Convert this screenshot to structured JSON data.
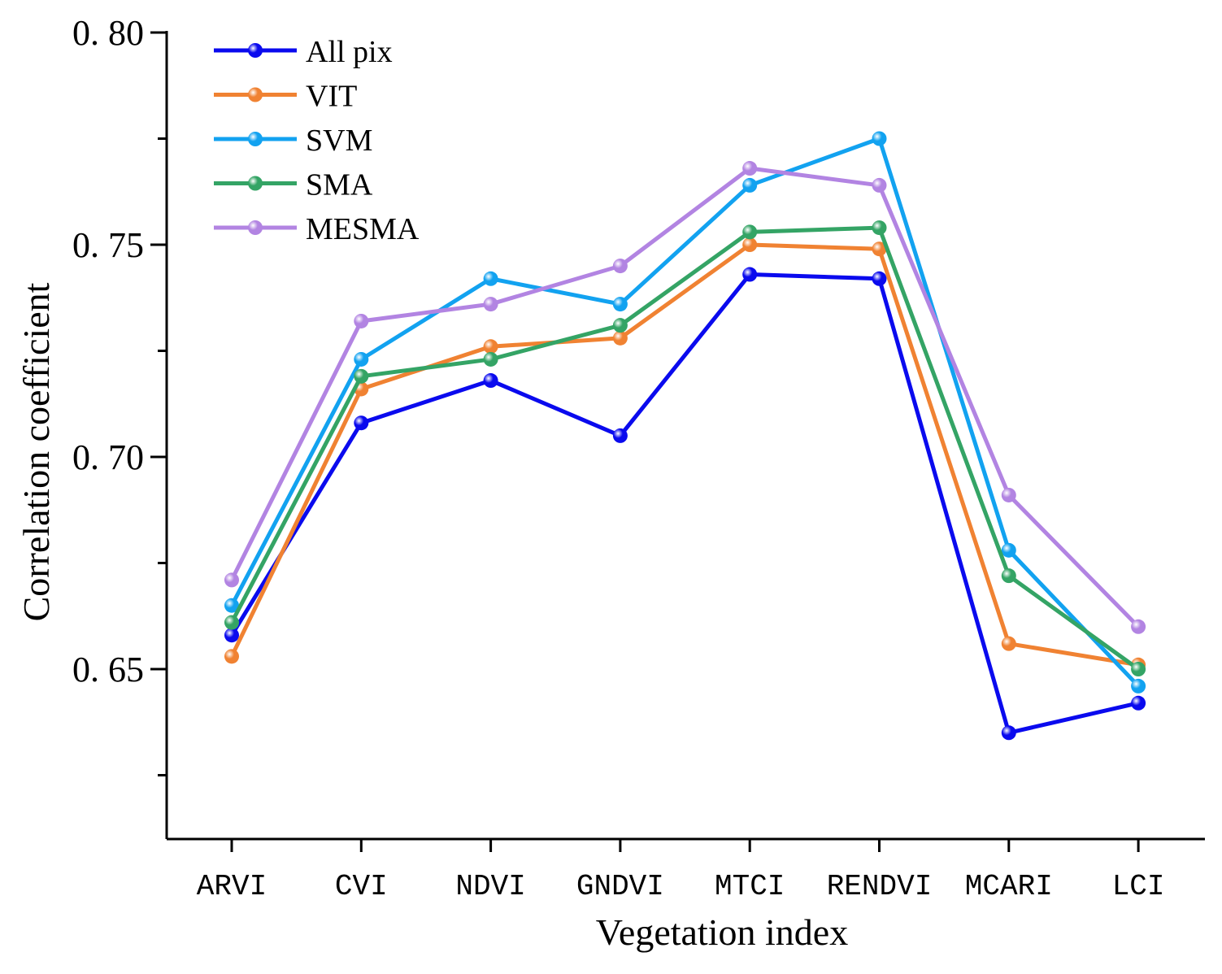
{
  "chart_data": {
    "type": "line",
    "title": "",
    "xlabel": "Vegetation index",
    "ylabel": "Correlation coefficient",
    "categories": [
      "ARVI",
      "CVI",
      "NDVI",
      "GNDVI",
      "MTCI",
      "RENDVI",
      "MCARI",
      "LCI"
    ],
    "ylim": [
      0.61,
      0.8
    ],
    "yticks": [
      0.65,
      0.7,
      0.75,
      0.8
    ],
    "ytick_labels": [
      "0. 65",
      "0. 70",
      "0. 75",
      "0. 80"
    ],
    "yminor_ticks": [
      0.625,
      0.675,
      0.725,
      0.775
    ],
    "grid": false,
    "legend_position": "top-left",
    "series": [
      {
        "name": "All pix",
        "color": "#0a0aee",
        "values": [
          0.658,
          0.708,
          0.718,
          0.705,
          0.743,
          0.742,
          0.635,
          0.642
        ]
      },
      {
        "name": "VIT",
        "color": "#f08232",
        "values": [
          0.653,
          0.716,
          0.726,
          0.728,
          0.75,
          0.749,
          0.656,
          0.651
        ]
      },
      {
        "name": "SVM",
        "color": "#12a2f0",
        "values": [
          0.665,
          0.723,
          0.742,
          0.736,
          0.764,
          0.775,
          0.678,
          0.646
        ]
      },
      {
        "name": "SMA",
        "color": "#34a465",
        "values": [
          0.661,
          0.719,
          0.723,
          0.731,
          0.753,
          0.754,
          0.672,
          0.65
        ]
      },
      {
        "name": "MESMA",
        "color": "#b284e2",
        "values": [
          0.671,
          0.732,
          0.736,
          0.745,
          0.768,
          0.764,
          0.691,
          0.66
        ]
      }
    ]
  }
}
